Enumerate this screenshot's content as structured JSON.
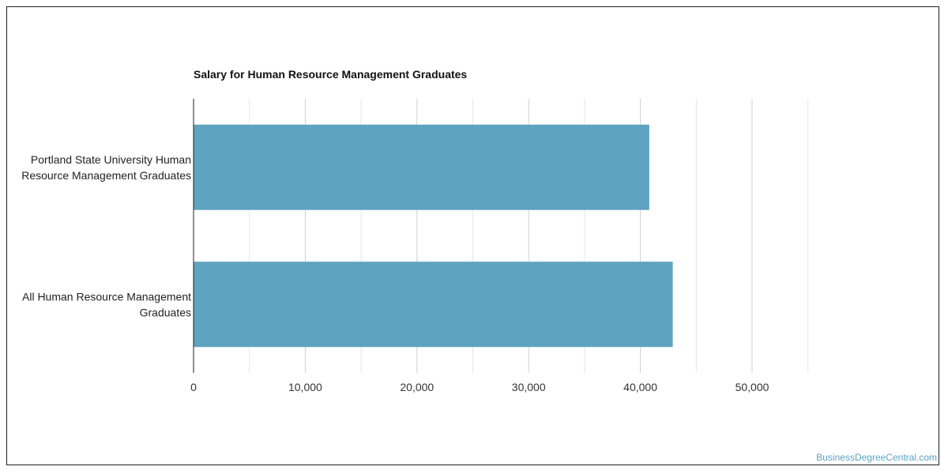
{
  "chart_data": {
    "type": "bar",
    "orientation": "horizontal",
    "title": "Salary for Human Resource Management Graduates",
    "categories": [
      [
        "Portland State University Human",
        "Resource Management Graduates"
      ],
      [
        "All Human Resource Management",
        "Graduates"
      ]
    ],
    "values": [
      40800,
      42900
    ],
    "xlim": [
      0,
      60000
    ],
    "xticks": [
      0,
      10000,
      20000,
      30000,
      40000,
      50000
    ],
    "xtick_labels": [
      "0",
      "10,000",
      "20,000",
      "30,000",
      "40,000",
      "50,000"
    ],
    "grid": true,
    "bar_color": "#5ea3bf"
  },
  "watermark": "BusinessDegreeCentral.com"
}
